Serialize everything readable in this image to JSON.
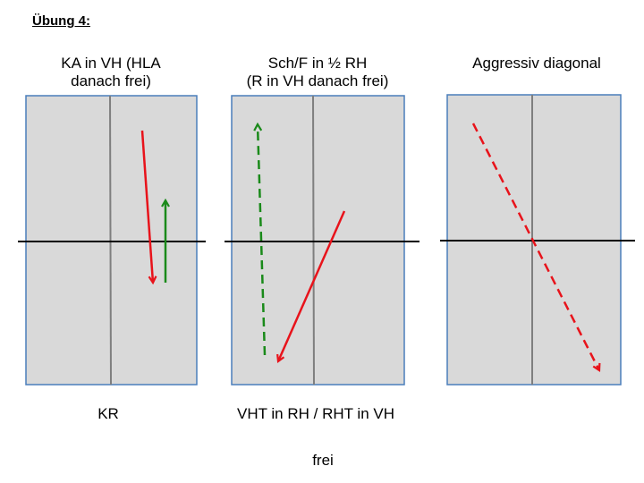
{
  "title": "Übung 4:",
  "panels": [
    {
      "heading": [
        "KA in VH (HLA",
        "danach frei)"
      ],
      "footer": "KR",
      "arrows": [
        {
          "color": "#e8131b",
          "style": "solid"
        },
        {
          "color": "#1a8a1a",
          "style": "solid"
        }
      ]
    },
    {
      "heading": [
        "Sch/F in ½ RH",
        "(R in VH danach frei)"
      ],
      "footer": "VHT in RH / RHT in VH",
      "arrows": [
        {
          "color": "#1a8a1a",
          "style": "dashed"
        },
        {
          "color": "#e8131b",
          "style": "solid"
        }
      ]
    },
    {
      "heading": [
        "Aggressiv diagonal"
      ],
      "footer": "",
      "arrows": [
        {
          "color": "#e8131b",
          "style": "dashed"
        }
      ]
    }
  ],
  "bottom_label": "frei",
  "colors": {
    "field_fill": "#d9d9d9",
    "field_border": "#4a7ebb",
    "center_line": "#7f7f7f",
    "half_line": "#000000",
    "red": "#e8131b",
    "green": "#1a8a1a"
  }
}
